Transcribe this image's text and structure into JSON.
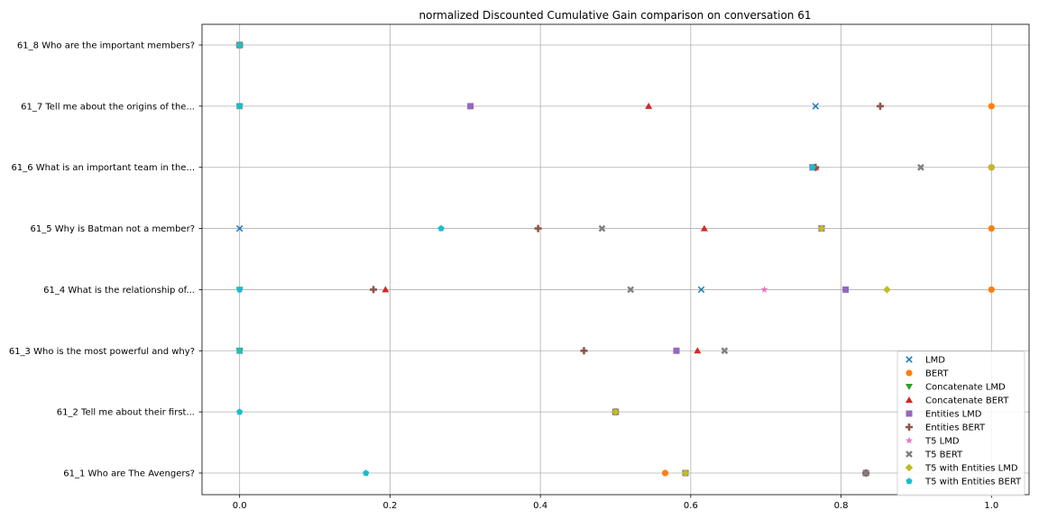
{
  "chart_data": {
    "type": "scatter",
    "title": "normalized Discounted Cumulative Gain comparison on conversation 61",
    "xlabel": "",
    "ylabel": "",
    "xlim": [
      -0.05,
      1.05
    ],
    "xticks": [
      "0.0",
      "0.2",
      "0.4",
      "0.6",
      "0.8",
      "1.0"
    ],
    "categories": [
      "61_1 Who are The Avengers?",
      "61_2 Tell me about their first...",
      "61_3 Who is the most powerful and why?",
      "61_4 What is the relationship of...",
      "61_5 Why is Batman not a member?",
      "61_6 What is an important team in the...",
      "61_7 Tell me about the origins of the...",
      "61_8 Who are the important members?"
    ],
    "grid": true,
    "legend_position": "lower-right",
    "series": [
      {
        "name": "LMD",
        "color": "#1f77b4",
        "marker": "x",
        "values": [
          0.833,
          0.5,
          0.0,
          0.614,
          0.0,
          0.762,
          0.766,
          0.0
        ]
      },
      {
        "name": "BERT",
        "color": "#ff7f0e",
        "marker": "circle",
        "values": [
          0.566,
          0.5,
          0.0,
          1.0,
          1.0,
          1.0,
          1.0,
          0.0
        ]
      },
      {
        "name": "Concatenate LMD",
        "color": "#2ca02c",
        "marker": "triangle-down",
        "values": [
          0.593,
          0.5,
          0.0,
          0.0,
          0.774,
          0.762,
          0.0,
          0.0
        ]
      },
      {
        "name": "Concatenate BERT",
        "color": "#d62728",
        "marker": "triangle-up",
        "values": [
          0.833,
          0.5,
          0.609,
          0.194,
          0.618,
          0.766,
          0.544,
          0.0
        ]
      },
      {
        "name": "Entities LMD",
        "color": "#9467bd",
        "marker": "square",
        "values": [
          0.593,
          0.5,
          0.581,
          0.806,
          0.774,
          0.762,
          0.307,
          0.0
        ]
      },
      {
        "name": "Entities BERT",
        "color": "#8c564b",
        "marker": "plus",
        "values": [
          0.833,
          0.5,
          0.458,
          0.178,
          0.397,
          0.766,
          0.852,
          0.0
        ]
      },
      {
        "name": "T5 LMD",
        "color": "#e377c2",
        "marker": "star",
        "values": [
          0.593,
          0.5,
          0.0,
          0.698,
          0.774,
          1.0,
          0.0,
          0.0
        ]
      },
      {
        "name": "T5 BERT",
        "color": "#7f7f7f",
        "marker": "x-thick",
        "values": [
          0.833,
          0.5,
          0.645,
          0.52,
          0.482,
          0.906,
          0.0,
          0.0
        ]
      },
      {
        "name": "T5 with Entities LMD",
        "color": "#bcbd22",
        "marker": "diamond",
        "values": [
          0.593,
          0.5,
          0.0,
          0.861,
          0.774,
          1.0,
          0.0,
          0.0
        ]
      },
      {
        "name": "T5 with Entities BERT",
        "color": "#17becf",
        "marker": "pentagon",
        "values": [
          0.168,
          0.0,
          0.0,
          0.0,
          0.268,
          0.762,
          0.0,
          0.0
        ]
      }
    ]
  }
}
